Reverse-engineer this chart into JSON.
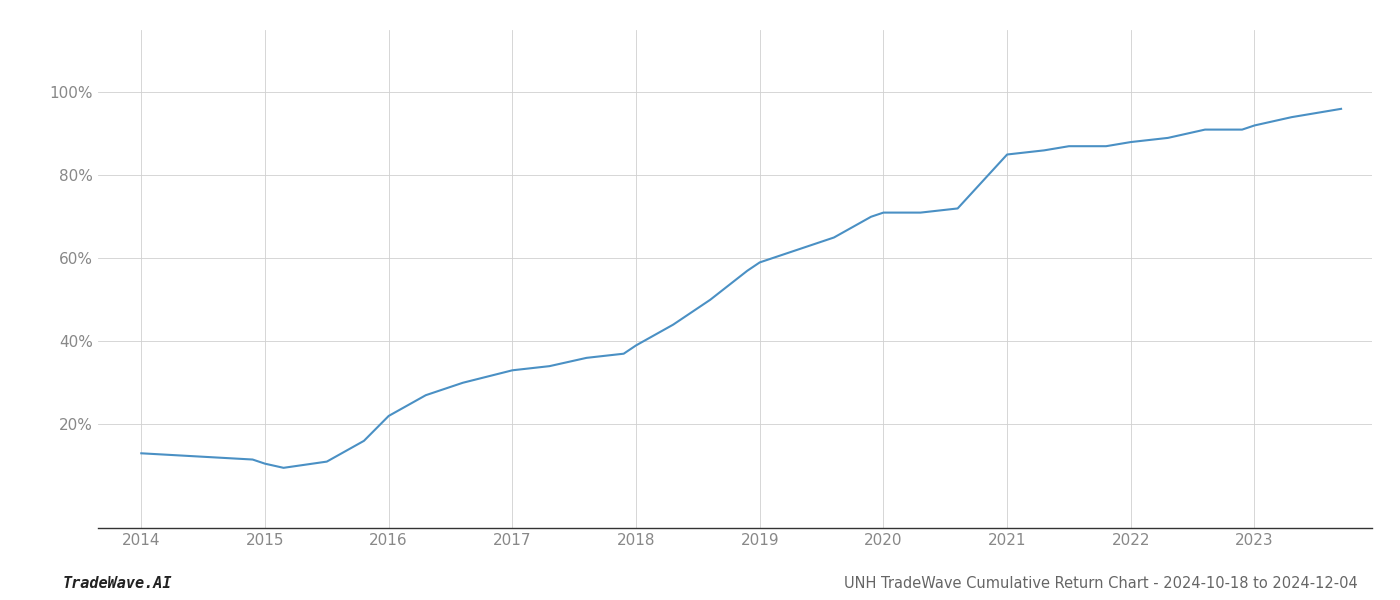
{
  "title": "UNH TradeWave Cumulative Return Chart - 2024-10-18 to 2024-12-04",
  "watermark": "TradeWave.AI",
  "x_years": [
    2014,
    2015,
    2016,
    2017,
    2018,
    2019,
    2020,
    2021,
    2022,
    2023
  ],
  "x_values": [
    2014.0,
    2014.3,
    2014.6,
    2014.9,
    2015.0,
    2015.15,
    2015.5,
    2015.8,
    2016.0,
    2016.3,
    2016.6,
    2017.0,
    2017.3,
    2017.6,
    2017.9,
    2018.0,
    2018.3,
    2018.6,
    2018.9,
    2019.0,
    2019.3,
    2019.6,
    2019.9,
    2020.0,
    2020.3,
    2020.6,
    2021.0,
    2021.3,
    2021.5,
    2021.8,
    2022.0,
    2022.3,
    2022.6,
    2022.9,
    2023.0,
    2023.3,
    2023.7
  ],
  "y_values": [
    13,
    12.5,
    12,
    11.5,
    10.5,
    9.5,
    11,
    16,
    22,
    27,
    30,
    33,
    34,
    36,
    37,
    39,
    44,
    50,
    57,
    59,
    62,
    65,
    70,
    71,
    71,
    72,
    85,
    86,
    87,
    87,
    88,
    89,
    91,
    91,
    92,
    94,
    96
  ],
  "line_color": "#4a90c4",
  "line_width": 1.5,
  "background_color": "#ffffff",
  "grid_color": "#d0d0d0",
  "ytick_labels": [
    "20%",
    "40%",
    "60%",
    "80%",
    "100%"
  ],
  "ytick_values": [
    20,
    40,
    60,
    80,
    100
  ],
  "ylim": [
    -5,
    115
  ],
  "xlim": [
    2013.65,
    2023.95
  ],
  "title_fontsize": 10.5,
  "watermark_fontsize": 11,
  "tick_fontsize": 11,
  "tick_color": "#888888",
  "spine_color": "#333333"
}
